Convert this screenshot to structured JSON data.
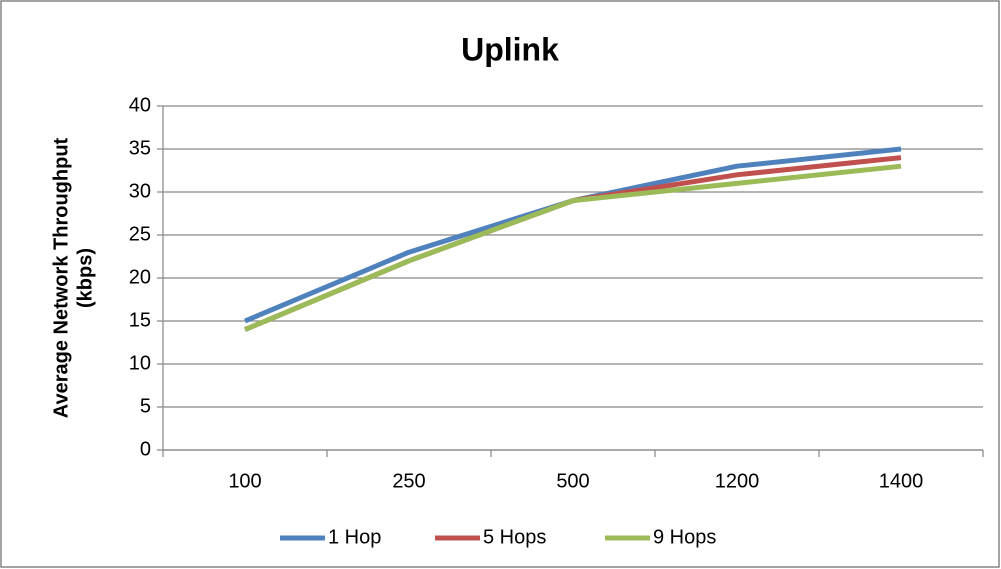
{
  "chart_data": {
    "type": "line",
    "title": "Uplink",
    "ylabel": [
      "Average Network Throughput",
      "(kbps)"
    ],
    "categories": [
      "100",
      "250",
      "500",
      "1200",
      "1400"
    ],
    "series": [
      {
        "name": "1 Hop",
        "color": "#4f81bd",
        "values": [
          15,
          23,
          29,
          33,
          35
        ]
      },
      {
        "name": "5 Hops",
        "color": "#c0504d",
        "values": [
          14,
          22,
          29,
          32,
          34
        ]
      },
      {
        "name": "9 Hops",
        "color": "#9bbb59",
        "values": [
          14,
          22,
          29,
          31,
          33
        ]
      }
    ],
    "ylim": [
      0,
      40
    ],
    "yticks": [
      0,
      5,
      10,
      15,
      20,
      25,
      30,
      35,
      40
    ],
    "grid": true,
    "legend": "bottom"
  }
}
